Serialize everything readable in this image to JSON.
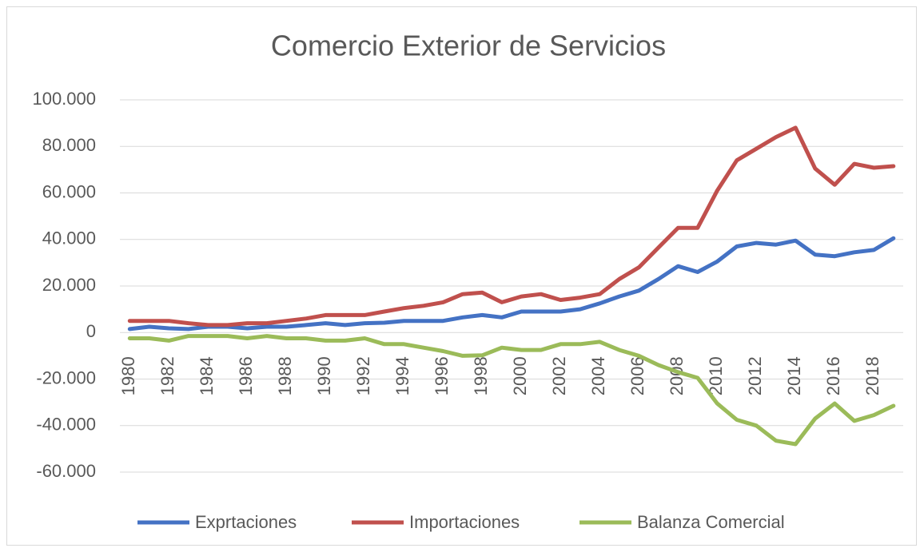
{
  "chart_data": {
    "type": "line",
    "title": "Comercio Exterior de Servicios",
    "categories": [
      "1980",
      null,
      "1982",
      null,
      "1984",
      null,
      "1986",
      null,
      "1988",
      null,
      "1990",
      null,
      "1992",
      null,
      "1994",
      null,
      "1996",
      null,
      "1998",
      null,
      "2000",
      null,
      "2002",
      null,
      "2004",
      null,
      "2006",
      null,
      "2008",
      null,
      "2010",
      null,
      "2012",
      null,
      "2014",
      null,
      "2016",
      null,
      "2018",
      null
    ],
    "series": [
      {
        "name": "Exprtaciones",
        "color": "#4472c4",
        "values": [
          1500,
          2500,
          1800,
          1500,
          2500,
          2500,
          1800,
          2500,
          2500,
          3200,
          4000,
          3200,
          4000,
          4200,
          5000,
          5000,
          5000,
          6500,
          7500,
          6500,
          9000,
          9000,
          9000,
          10000,
          12500,
          15500,
          18000,
          23000,
          28500,
          26000,
          30500,
          37000,
          38500,
          37800,
          39500,
          33500,
          32800,
          34500,
          35500,
          40500
        ]
      },
      {
        "name": "Importaciones",
        "color": "#c0504d",
        "values": [
          5000,
          5000,
          5000,
          4000,
          3200,
          3200,
          4000,
          4000,
          5000,
          6000,
          7500,
          7500,
          7500,
          9000,
          10500,
          11500,
          13000,
          16500,
          17200,
          13000,
          15500,
          16500,
          14000,
          15000,
          16500,
          23000,
          28000,
          36500,
          45000,
          45000,
          61000,
          74000,
          79000,
          84000,
          88000,
          70500,
          63500,
          72500,
          70800,
          71500
        ]
      },
      {
        "name": "Balanza Comercial",
        "color": "#9bbb59",
        "values": [
          -2500,
          -2500,
          -3500,
          -1500,
          -1500,
          -1500,
          -2500,
          -1500,
          -2500,
          -2500,
          -3500,
          -3500,
          -2500,
          -5000,
          -5000,
          -6500,
          -8000,
          -10000,
          -9800,
          -6500,
          -7500,
          -7500,
          -5000,
          -5000,
          -4000,
          -7500,
          -10000,
          -14000,
          -17000,
          -19500,
          -30500,
          -37500,
          -40000,
          -46500,
          -48000,
          -37000,
          -30500,
          -38000,
          -35500,
          -31500
        ]
      }
    ],
    "ylim": [
      -60000,
      100000
    ],
    "yticks": [
      {
        "value": -60000,
        "label": "-60.000"
      },
      {
        "value": -40000,
        "label": "-40.000"
      },
      {
        "value": -20000,
        "label": "-20.000"
      },
      0,
      {
        "value": 20000,
        "label": "20.000"
      },
      {
        "value": 40000,
        "label": "40.000"
      },
      {
        "value": 60000,
        "label": "60.000"
      },
      {
        "value": 80000,
        "label": "80.000"
      },
      {
        "value": 100000,
        "label": "100.000"
      }
    ],
    "grid": true,
    "legend": "bottom"
  }
}
